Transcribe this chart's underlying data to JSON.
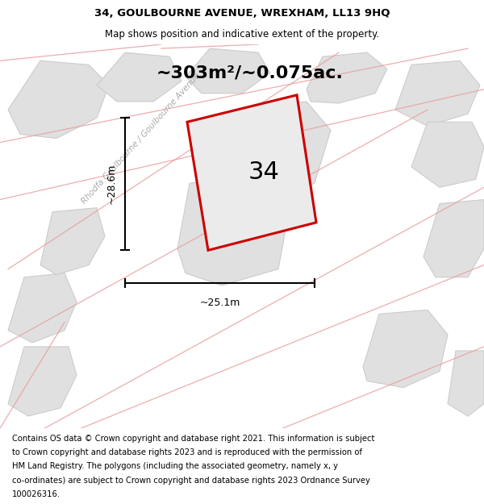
{
  "title": "34, GOULBOURNE AVENUE, WREXHAM, LL13 9HQ",
  "subtitle": "Map shows position and indicative extent of the property.",
  "area_text": "~303m²/~0.075ac.",
  "number_label": "34",
  "dim_width": "~25.1m",
  "dim_height": "~28.6m",
  "road_label": "Rhodfa Goulbourne / Goulbourne Avenue",
  "footer_lines": [
    "Contains OS data © Crown copyright and database right 2021. This information is subject",
    "to Crown copyright and database rights 2023 and is reproduced with the permission of",
    "HM Land Registry. The polygons (including the associated geometry, namely x, y",
    "co-ordinates) are subject to Crown copyright and database rights 2023 Ordnance Survey",
    "100026316."
  ],
  "map_bg": "#f2f2f2",
  "gray_fill": "#e0e0e0",
  "gray_edge": "#cccccc",
  "pink_color": "#e8a0a0",
  "plot_fill": "#ebebeb",
  "plot_edge": "#cc0000",
  "title_fontsize": 9.5,
  "subtitle_fontsize": 8.5,
  "footer_fontsize": 7.2,
  "area_fontsize": 16,
  "number_fontsize": 22,
  "dim_fontsize": 9
}
